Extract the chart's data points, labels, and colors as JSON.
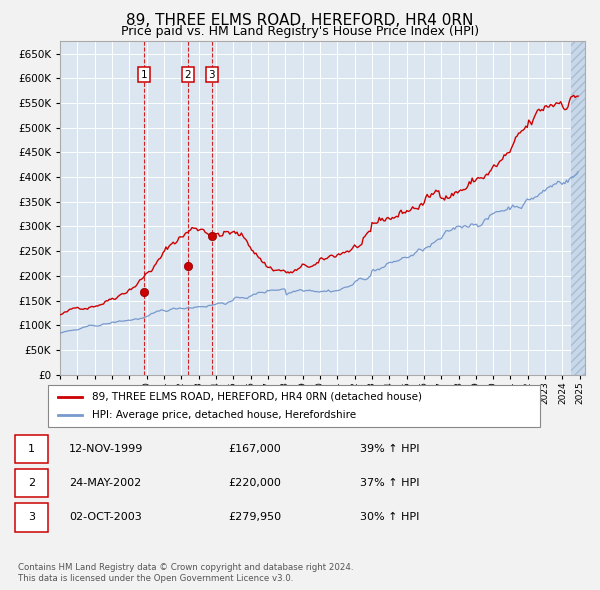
{
  "title": "89, THREE ELMS ROAD, HEREFORD, HR4 0RN",
  "subtitle": "Price paid vs. HM Land Registry's House Price Index (HPI)",
  "title_fontsize": 11,
  "subtitle_fontsize": 9,
  "background_color": "#f2f2f2",
  "plot_bg_color": "#dce6f1",
  "grid_color": "#ffffff",
  "red_line_color": "#cc0000",
  "blue_line_color": "#7799cc",
  "ylim": [
    0,
    675000
  ],
  "yticks": [
    0,
    50000,
    100000,
    150000,
    200000,
    250000,
    300000,
    350000,
    400000,
    450000,
    500000,
    550000,
    600000,
    650000
  ],
  "legend_label_red": "89, THREE ELMS ROAD, HEREFORD, HR4 0RN (detached house)",
  "legend_label_blue": "HPI: Average price, detached house, Herefordshire",
  "purchases": [
    {
      "index": 1,
      "date": "12-NOV-1999",
      "price": 167000,
      "pct": "39% ↑ HPI",
      "x_year": 1999.87
    },
    {
      "index": 2,
      "date": "24-MAY-2002",
      "price": 220000,
      "pct": "37% ↑ HPI",
      "x_year": 2002.39
    },
    {
      "index": 3,
      "date": "02-OCT-2003",
      "price": 279950,
      "pct": "30% ↑ HPI",
      "x_year": 2003.75
    }
  ],
  "footer_line1": "Contains HM Land Registry data © Crown copyright and database right 2024.",
  "footer_line2": "This data is licensed under the Open Government Licence v3.0.",
  "xmin": 1995.0,
  "xmax": 2025.3
}
